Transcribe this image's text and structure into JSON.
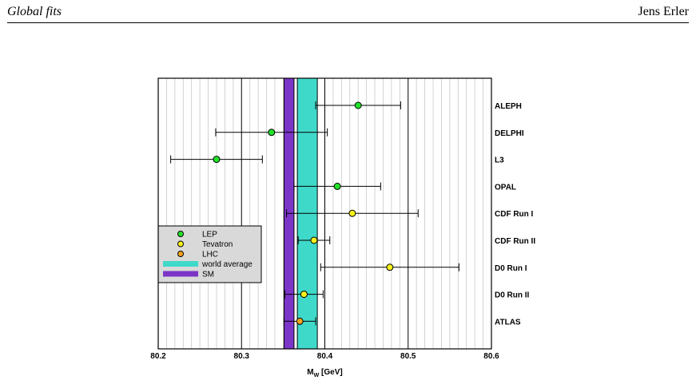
{
  "header": {
    "left": "Global fits",
    "right": "Jens Erler"
  },
  "colors": {
    "lep": "#22e22a",
    "tevatron": "#f8f21a",
    "lhc": "#f4a21c",
    "world_average": "#3fd9c9",
    "sm": "#7b35c7",
    "legend_bg": "#d9d9d9"
  },
  "chart_data": {
    "type": "scatter",
    "title": "",
    "xlabel_main": "M",
    "xlabel_sub": "W",
    "xlabel_unit": "[GeV]",
    "xlim": [
      80.2,
      80.6
    ],
    "x_ticks": [
      "80.2",
      "80.3",
      "80.4",
      "80.5",
      "80.6"
    ],
    "x_tick_values": [
      80.2,
      80.3,
      80.4,
      80.5,
      80.6
    ],
    "minor_step": 0.01,
    "grid": true,
    "legend_position": "left",
    "bands": [
      {
        "name": "world average",
        "center": 80.379,
        "half_width": 0.012,
        "color": "world_average"
      },
      {
        "name": "SM",
        "center": 80.357,
        "half_width": 0.006,
        "color": "sm"
      }
    ],
    "measurements": [
      {
        "label": "ALEPH",
        "value": 80.44,
        "error": 0.051,
        "group": "lep"
      },
      {
        "label": "DELPHI",
        "value": 80.336,
        "error": 0.067,
        "group": "lep"
      },
      {
        "label": "L3",
        "value": 80.27,
        "error": 0.055,
        "group": "lep"
      },
      {
        "label": "OPAL",
        "value": 80.415,
        "error": 0.052,
        "group": "lep"
      },
      {
        "label": "CDF Run I",
        "value": 80.433,
        "error": 0.079,
        "group": "tevatron"
      },
      {
        "label": "CDF Run II",
        "value": 80.387,
        "error": 0.019,
        "group": "tevatron"
      },
      {
        "label": "D0 Run I",
        "value": 80.478,
        "error": 0.083,
        "group": "tevatron"
      },
      {
        "label": "D0 Run II",
        "value": 80.375,
        "error": 0.023,
        "group": "tevatron"
      },
      {
        "label": "ATLAS",
        "value": 80.37,
        "error": 0.019,
        "group": "lhc"
      }
    ],
    "legend": [
      {
        "label": "LEP",
        "kind": "marker",
        "color": "lep"
      },
      {
        "label": "Tevatron",
        "kind": "marker",
        "color": "tevatron"
      },
      {
        "label": "LHC",
        "kind": "marker",
        "color": "lhc"
      },
      {
        "label": "world average",
        "kind": "band",
        "color": "world_average"
      },
      {
        "label": "SM",
        "kind": "band",
        "color": "sm"
      }
    ]
  }
}
